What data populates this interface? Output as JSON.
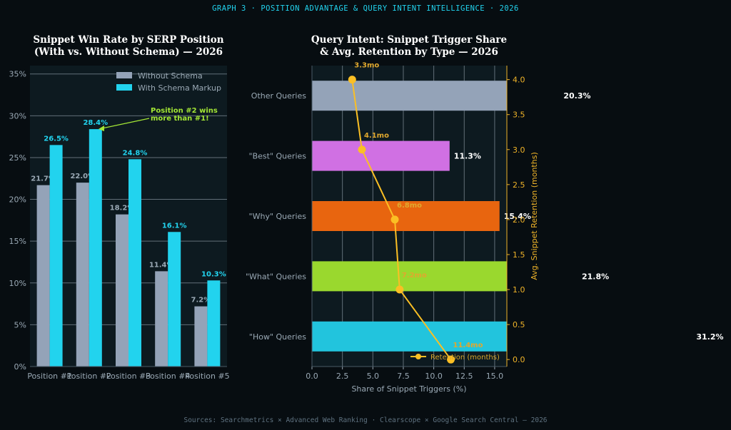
{
  "header": {
    "title": "GRAPH 3  ·  POSITION ADVANTAGE & QUERY INTENT INTELLIGENCE  ·  2026"
  },
  "footer": {
    "source": "Sources: Searchmetrics × Advanced Web Ranking · Clearscope × Google Search Central  —  2026"
  },
  "colors": {
    "without_schema": "#94a3b8",
    "with_schema": "#22d3ee",
    "retention": "#fbbf24",
    "annotation": "#a3e635"
  },
  "chart_data": [
    {
      "type": "bar",
      "title_lines": [
        "Snippet Win Rate by SERP Position",
        "(With vs. Without Schema) — 2026"
      ],
      "categories": [
        "Position #1",
        "Position #2",
        "Position #3",
        "Position #4",
        "Position #5"
      ],
      "series": [
        {
          "name": "Without Schema",
          "values": [
            21.7,
            22.0,
            18.2,
            11.4,
            7.2
          ],
          "labels": [
            "21.7%",
            "22.0%",
            "18.2%",
            "11.4%",
            "7.2%"
          ]
        },
        {
          "name": "With Schema Markup",
          "values": [
            26.5,
            28.4,
            24.8,
            16.1,
            10.3
          ],
          "labels": [
            "26.5%",
            "28.4%",
            "24.8%",
            "16.1%",
            "10.3%"
          ]
        }
      ],
      "ylim": [
        0,
        36
      ],
      "yticks": [
        "0%",
        "5%",
        "10%",
        "15%",
        "20%",
        "25%",
        "30%",
        "35%"
      ],
      "grid": true,
      "legend": "top-right",
      "annotation": {
        "lines": [
          "Position #2 wins",
          "more than #1!"
        ]
      }
    },
    {
      "type": "bar",
      "orientation": "horizontal",
      "title_lines": [
        "Query Intent: Snippet Trigger Share",
        "& Avg. Retention by Type — 2026"
      ],
      "categories": [
        "\"How\" Queries",
        "\"What\" Queries",
        "\"Why\" Queries",
        "\"Best\" Queries",
        "Other Queries"
      ],
      "values": [
        31.2,
        21.8,
        15.4,
        11.3,
        20.3
      ],
      "value_labels": [
        "31.2%",
        "21.8%",
        "15.4%",
        "11.3%",
        "20.3%"
      ],
      "bar_colors": [
        "#22c4dd",
        "#9ad82e",
        "#e8650f",
        "#d070e3",
        "#94a3b8"
      ],
      "xlabel": "Share of Snippet Triggers (%)",
      "xlim": [
        0,
        16
      ],
      "xticks": [
        "0.0",
        "2.5",
        "5.0",
        "7.5",
        "10.0",
        "12.5",
        "15.0"
      ],
      "grid": true,
      "retention": {
        "name": "Retention (months)",
        "ylabel": "Avg. Snippet Retention (months)",
        "ylim": [
          -0.1,
          4.2
        ],
        "yticks": [
          "0.0",
          "0.5",
          "1.0",
          "1.5",
          "2.0",
          "2.5",
          "3.0",
          "3.5",
          "4.0"
        ],
        "x": [
          11.4,
          7.2,
          6.8,
          4.1,
          3.3
        ],
        "y": [
          0,
          1,
          2,
          3,
          4
        ],
        "labels": [
          "11.4mo",
          "7.2mo",
          "6.8mo",
          "4.1mo",
          "3.3mo"
        ]
      },
      "legend": "bottom-right"
    }
  ]
}
